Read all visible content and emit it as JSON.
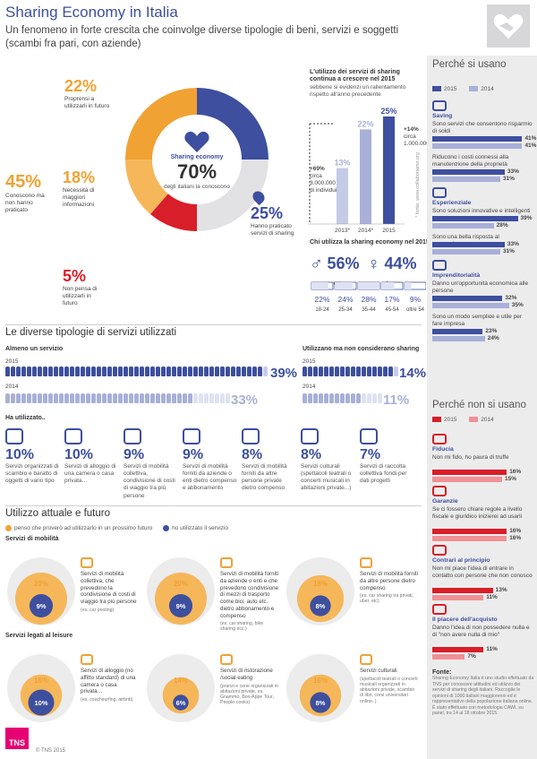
{
  "header": {
    "title": "Sharing Economy in Italia",
    "subtitle": "Un fenomeno in forte crescita che coinvolge diverse tipologie di beni, servizi e soggetti (scambi fra pari, con aziende)"
  },
  "donut": {
    "center_label": "Sharing economy",
    "center_value": "70%",
    "center_sub": "degli italiani la conoscono",
    "segments": [
      {
        "pct": "22%",
        "text": "Proprensi a utilizzarli in futuro",
        "color": "#f0a233",
        "value": 22
      },
      {
        "pct": "18%",
        "text": "Necessità di maggiori informazioni",
        "color": "#f0a233",
        "value": 18
      },
      {
        "pct": "5%",
        "text": "Non pensa di utilizzarli in futuro",
        "color": "#d81e28",
        "value": 5
      },
      {
        "pct": "45%",
        "text": "Conoscono ma non hanno praticato",
        "color": "#f0a233",
        "value": 45
      },
      {
        "pct": "25%",
        "text": "Hanno praticato servizi di sharing",
        "color": "#3d4f9e",
        "value": 25
      }
    ]
  },
  "trend": {
    "title": "L'utilizzo dei servizi di sharing continua a crescere nel 2015",
    "sub": "sebbene si evidenzi un rallentamento rispetto all'anno precedente",
    "note_left_pct": "+69%",
    "note_left": "circa 3.000.000 di individui",
    "note_right_pct": "+14%",
    "note_right": "circa 1.000.000",
    "source": "* fonte: www.collaboriamo.org"
  },
  "users": {
    "title": "Chi utilizza la sharing economy nel 2015",
    "male_pct": "56%",
    "male_label": "uomo",
    "female_pct": "44%",
    "female_label": "donna"
  },
  "services_section": {
    "title": "Le diverse tipologie di servizi utilizzati",
    "left_title": "Almeno un servizio",
    "right_title": "Utilizzano ma non considerano sharing",
    "y2015": "2015",
    "y2014": "2014",
    "left_2015": "39%",
    "left_2014": "33%",
    "right_2015": "14%",
    "right_2014": "11%",
    "used_label": "Ha utilizzato..",
    "items": [
      {
        "pct": "10%",
        "text": "Servizi organizzati di scambio e baratto di oggetti di vario tipo",
        "icon": "hands-icon"
      },
      {
        "pct": "10%",
        "text": "Servizi di alloggio di una camera o casa privata…",
        "icon": "house-icon"
      },
      {
        "pct": "9%",
        "text": "Servizi di mobilità collettiva, condivisione di costi di viaggio tra più persone",
        "icon": "steering-wheel-icon"
      },
      {
        "pct": "9%",
        "text": "Servizi di mobilità forniti da aziende o enti dietro compenso e abbonamento",
        "icon": "car-icon"
      },
      {
        "pct": "8%",
        "text": "Servizi di mobilità forniti da altre persone private dietro compenso",
        "icon": "car-icon"
      },
      {
        "pct": "8%",
        "text": "Servizi culturali (spettacoli teatrali o concerti musicali in abitazioni private...)",
        "icon": "ticket-icon"
      },
      {
        "pct": "7%",
        "text": "Servizi di raccolta collettiva fondi per dati progetti",
        "icon": "piggy-bank-icon"
      }
    ]
  },
  "future": {
    "title": "Utilizzo attuale e futuro",
    "legend_orange": "penso che proverò ad utilizzarlo in un prossimo futuro",
    "legend_blue": "ho utilizzato il servizio",
    "mob_title": "Servizi di mobilità",
    "leisure_title": "Servizi legati al leisure",
    "items": [
      {
        "outer": "20%",
        "inner": "9%",
        "text": "Servizi di mobilità collettiva, che prevedono la condivisione di costi di viaggio tra più persone",
        "ex": "(es. car pooling)"
      },
      {
        "outer": "20%",
        "inner": "9%",
        "text": "Servizi di mobilità forniti da aziende o enti e che prevedono condivisione di mezzi di trasporto come bici, auto etc. dietro abbonamento e compenso",
        "ex": "(es. car sharing, bike sharing ecc.)"
      },
      {
        "outer": "18%",
        "inner": "8%",
        "text": "Servizi di mobilità forniti da altre persone dietro compenso",
        "ex": "(es. car sharing tra privati, uber, etc)"
      },
      {
        "outer": "16%",
        "inner": "10%",
        "text": "Servizi di alloggio (no affitto standard) di una camera o casa privata…",
        "ex": "(es. couchsurfing, airbnb)"
      },
      {
        "outer": "14%",
        "inner": "6%",
        "text": "Servizi di ristorazione /social eating",
        "ex": "(pranzi e cene organizzati in abitazioni private, es. Gnammo, Bon-Appe Tour, People-cooks)"
      },
      {
        "outer": "16%",
        "inner": "8%",
        "text": "Servizi culturali",
        "ex": "(spettacoli teatrali o concerti musicali organizzati in abitazioni private, scambio di libri, corsi universitari online..)"
      }
    ]
  },
  "why_use": {
    "title": "Perché si usano",
    "y2015": "2015",
    "y2014": "2014",
    "items": [
      {
        "head": "Saving",
        "text": "Sono servizi che consentono risparmio di soldi",
        "v2015": 41,
        "v2014": 41,
        "icon": "piggy-bank-icon"
      },
      {
        "head": "",
        "text": "Riducono i costi connessi alla manutenzione della proprietà",
        "v2015": 33,
        "v2014": 31,
        "icon": ""
      },
      {
        "head": "Esperienziale",
        "text": "Sono soluzioni innovative e intelligenti",
        "v2015": 39,
        "v2014": 28,
        "icon": "lightbulb-icon"
      },
      {
        "head": "",
        "text": "Sono una bella risposta al consumismo",
        "v2015": 33,
        "v2014": 31,
        "icon": ""
      },
      {
        "head": "Imprenditorialità",
        "text": "Danno un'opportunità economica alle persone",
        "v2015": 32,
        "v2014": 35,
        "icon": "briefcase-icon"
      },
      {
        "head": "",
        "text": "Sono un modo semplice e utile per fare impresa",
        "v2015": 23,
        "v2014": 24,
        "icon": ""
      }
    ]
  },
  "why_not": {
    "title": "Perché non si usano",
    "y2015": "2015",
    "y2014": "2014",
    "items": [
      {
        "head": "Fiducia",
        "text": "Non mi fido, ho paura di truffe",
        "v2015": 16,
        "v2014": 15,
        "icon": "warning-icon"
      },
      {
        "head": "Garanzie",
        "text": "Se ci fossero chiare regole a livello fiscale e giuridico inizierei ad usarli",
        "v2015": 16,
        "v2014": 16,
        "icon": "gavel-icon"
      },
      {
        "head": "Contrari al principio",
        "text": "Non mi piace l'idea di entrare in contatto con persone che non conosco",
        "v2015": 13,
        "v2014": 11,
        "icon": "thumbs-down-icon"
      },
      {
        "head": "Il piacere dell'acquisto",
        "text": "Danno l'idea di non possedere nulla e di \"non avere nulla di mio\"",
        "v2015": 11,
        "v2014": 7,
        "icon": "shopping-bag-icon"
      }
    ]
  },
  "footer": {
    "fonte_title": "Fonte:",
    "fonte_text": "Sharing Economy Italia è uno studio effettuato da TNS per conoscere attitudini ed utilizzo dei servizi di sharing degli italiani. Raccoglie le opinioni di 1000 italiani maggiorenni ed è rappresentativo della popolazione italiana online. È stato effettuato con metodologia CAWI, su panel, tra 14 al 18 ottobre 2015.",
    "brand": "TNS",
    "copyright": "© TNS 2015"
  },
  "chart_data": [
    {
      "type": "bar",
      "title": "L'utilizzo dei servizi di sharing continua a crescere nel 2015",
      "categories": [
        "2013*",
        "2014*",
        "2015"
      ],
      "values": [
        13,
        22,
        25
      ],
      "ylim": [
        0,
        25
      ]
    },
    {
      "type": "bar",
      "title": "Chi utilizza la sharing economy nel 2015",
      "categories": [
        "18-24",
        "25-34",
        "35-44",
        "45-54",
        "oltre 54"
      ],
      "values": [
        22,
        24,
        28,
        17,
        9
      ]
    },
    {
      "type": "bar",
      "title": "Perché si usano",
      "categories": [
        "Sono servizi che consentono risparmio di soldi",
        "Riducono i costi connessi alla manutenzione della proprietà",
        "Sono soluzioni innovative e intelligenti",
        "Sono una bella risposta al consumismo",
        "Danno un'opportunità economica alle persone",
        "Sono un modo semplice e utile per fare impresa"
      ],
      "series": [
        {
          "name": "2015",
          "values": [
            41,
            33,
            39,
            33,
            32,
            23
          ]
        },
        {
          "name": "2014",
          "values": [
            41,
            31,
            28,
            31,
            35,
            24
          ]
        }
      ]
    },
    {
      "type": "bar",
      "title": "Perché non si usano",
      "categories": [
        "Non mi fido, ho paura di truffe",
        "Se ci fossero chiare regole a livello fiscale e giuridico inizierei ad usarli",
        "Non mi piace l'idea di entrare in contatto con persone che non conosco",
        "Danno l'idea di non possedere nulla e di \"non avere nulla di mio\""
      ],
      "series": [
        {
          "name": "2015",
          "values": [
            16,
            16,
            13,
            11
          ]
        },
        {
          "name": "2014",
          "values": [
            15,
            16,
            11,
            7
          ]
        }
      ]
    }
  ]
}
